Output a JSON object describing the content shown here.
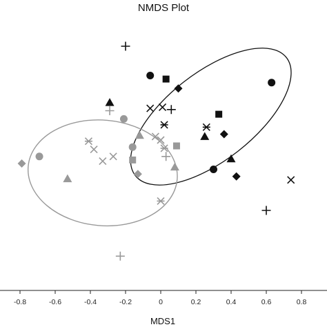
{
  "chart_data": {
    "type": "scatter",
    "title": "NMDS Plot",
    "xlabel": "MDS1",
    "ylabel": "",
    "xlim": [
      -0.9,
      0.82
    ],
    "ylim": [
      -0.72,
      0.72
    ],
    "x_ticks": [
      -0.8,
      -0.6,
      -0.4,
      -0.2,
      0,
      0.2,
      0.4,
      0.6,
      0.8
    ],
    "x_tick_labels": [
      "-0.8",
      "-0.6",
      "-0.4",
      "-0.2",
      "0",
      "0.2",
      "0.4",
      "0.6",
      "0.8"
    ],
    "grid": false,
    "legend": "none",
    "series": [
      {
        "color": "#111111",
        "ellipse": {
          "cx": 0.285,
          "cy": 0.2,
          "rx": 0.545,
          "ry": 0.25,
          "angle_deg": -38
        },
        "points": [
          {
            "shape": "plus",
            "x": -0.2,
            "y": 0.5
          },
          {
            "shape": "circle",
            "x": -0.06,
            "y": 0.375
          },
          {
            "shape": "square",
            "x": 0.03,
            "y": 0.36
          },
          {
            "shape": "diamond",
            "x": 0.1,
            "y": 0.32
          },
          {
            "shape": "circle",
            "x": 0.63,
            "y": 0.345
          },
          {
            "shape": "triangle",
            "x": -0.29,
            "y": 0.26
          },
          {
            "shape": "x",
            "x": -0.06,
            "y": 0.235
          },
          {
            "shape": "x",
            "x": 0.01,
            "y": 0.24
          },
          {
            "shape": "plus",
            "x": 0.06,
            "y": 0.23
          },
          {
            "shape": "square",
            "x": 0.33,
            "y": 0.21
          },
          {
            "shape": "asterisk",
            "x": 0.02,
            "y": 0.165
          },
          {
            "shape": "asterisk",
            "x": 0.26,
            "y": 0.155
          },
          {
            "shape": "diamond",
            "x": 0.36,
            "y": 0.125
          },
          {
            "shape": "triangle",
            "x": 0.25,
            "y": 0.115
          },
          {
            "shape": "triangle",
            "x": 0.4,
            "y": 0.02
          },
          {
            "shape": "circle",
            "x": 0.3,
            "y": -0.025
          },
          {
            "shape": "diamond",
            "x": 0.43,
            "y": -0.055
          },
          {
            "shape": "x",
            "x": 0.74,
            "y": -0.07
          },
          {
            "shape": "plus",
            "x": 0.6,
            "y": -0.2
          }
        ]
      },
      {
        "color": "#999999",
        "ellipse": {
          "cx": -0.33,
          "cy": -0.04,
          "rx": 0.425,
          "ry": 0.3,
          "angle_deg": 5
        },
        "points": [
          {
            "shape": "plus",
            "x": -0.29,
            "y": 0.225
          },
          {
            "shape": "circle",
            "x": -0.21,
            "y": 0.19
          },
          {
            "shape": "asterisk",
            "x": -0.41,
            "y": 0.095
          },
          {
            "shape": "triangle",
            "x": -0.12,
            "y": 0.12
          },
          {
            "shape": "x",
            "x": 0.0,
            "y": 0.1
          },
          {
            "shape": "x",
            "x": -0.03,
            "y": 0.115
          },
          {
            "shape": "x",
            "x": -0.38,
            "y": 0.06
          },
          {
            "shape": "circle",
            "x": -0.16,
            "y": 0.07
          },
          {
            "shape": "square",
            "x": 0.09,
            "y": 0.075
          },
          {
            "shape": "circle",
            "x": -0.69,
            "y": 0.03
          },
          {
            "shape": "x",
            "x": -0.27,
            "y": 0.03
          },
          {
            "shape": "x",
            "x": -0.33,
            "y": 0.01
          },
          {
            "shape": "asterisk",
            "x": 0.02,
            "y": 0.065
          },
          {
            "shape": "plus",
            "x": 0.03,
            "y": 0.03
          },
          {
            "shape": "square",
            "x": -0.16,
            "y": 0.015
          },
          {
            "shape": "diamond",
            "x": -0.79,
            "y": 0.0
          },
          {
            "shape": "triangle",
            "x": 0.08,
            "y": -0.015
          },
          {
            "shape": "diamond",
            "x": -0.13,
            "y": -0.045
          },
          {
            "shape": "triangle",
            "x": -0.53,
            "y": -0.065
          },
          {
            "shape": "asterisk",
            "x": 0.0,
            "y": -0.16
          },
          {
            "shape": "plus",
            "x": -0.23,
            "y": -0.395
          }
        ]
      }
    ]
  }
}
